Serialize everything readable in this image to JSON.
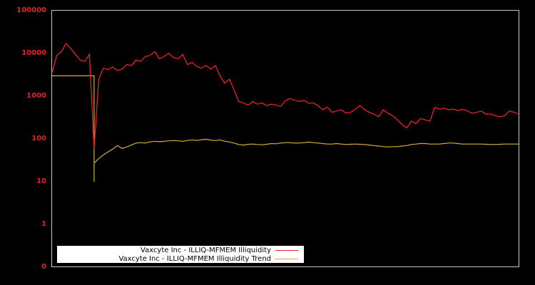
{
  "chart_data": {
    "type": "line",
    "title": "",
    "xlabel": "",
    "ylabel": "",
    "yscale": "log",
    "y_ticks": [
      "100000",
      "10000",
      "1000",
      "100",
      "10",
      "1",
      "0"
    ],
    "ylim": [
      0.1,
      100000
    ],
    "grid": false,
    "legend_position": "lower-left",
    "x": [
      0,
      0.01,
      0.02,
      0.03,
      0.04,
      0.05,
      0.06,
      0.07,
      0.08,
      0.09,
      0.1,
      0.11,
      0.12,
      0.13,
      0.14,
      0.15,
      0.16,
      0.17,
      0.18,
      0.19,
      0.2,
      0.21,
      0.22,
      0.23,
      0.24,
      0.25,
      0.26,
      0.27,
      0.28,
      0.29,
      0.3,
      0.31,
      0.32,
      0.33,
      0.34,
      0.35,
      0.36,
      0.37,
      0.38,
      0.39,
      0.4,
      0.41,
      0.42,
      0.43,
      0.44,
      0.45,
      0.46,
      0.47,
      0.48,
      0.49,
      0.5,
      0.51,
      0.52,
      0.53,
      0.54,
      0.55,
      0.56,
      0.57,
      0.58,
      0.59,
      0.6,
      0.61,
      0.62,
      0.63,
      0.64,
      0.65,
      0.66,
      0.67,
      0.68,
      0.69,
      0.7,
      0.71,
      0.72,
      0.73,
      0.74,
      0.75,
      0.76,
      0.77,
      0.78,
      0.79,
      0.8,
      0.81,
      0.82,
      0.83,
      0.84,
      0.85,
      0.86,
      0.87,
      0.88,
      0.89,
      0.9,
      0.91,
      0.92,
      0.93,
      0.94,
      0.95,
      0.96,
      0.97,
      0.98,
      0.99,
      1.0
    ],
    "series": [
      {
        "name": "Vaxcyte Inc - ILLIQ-MFMEM Illiquidity",
        "color": "#e8202a",
        "values": [
          3500,
          9000,
          11000,
          17000,
          13000,
          9500,
          7000,
          6500,
          9500,
          60,
          2500,
          4500,
          4200,
          4800,
          4000,
          4300,
          5500,
          5200,
          7000,
          6500,
          8500,
          9000,
          11000,
          7500,
          8500,
          10000,
          8000,
          7500,
          9500,
          5500,
          6200,
          5000,
          4500,
          5200,
          4300,
          5200,
          3000,
          2000,
          2500,
          1400,
          750,
          700,
          620,
          750,
          650,
          700,
          600,
          650,
          620,
          580,
          780,
          880,
          800,
          750,
          800,
          680,
          700,
          600,
          480,
          550,
          420,
          450,
          480,
          400,
          420,
          500,
          600,
          480,
          420,
          380,
          330,
          480,
          400,
          350,
          280,
          220,
          180,
          260,
          230,
          300,
          280,
          260,
          550,
          500,
          520,
          480,
          500,
          460,
          490,
          450,
          400,
          420,
          450,
          380,
          380,
          350,
          330,
          350,
          450,
          420,
          380
        ]
      },
      {
        "name": "Vaxcyte Inc - ILLIQ-MFMEM Illiquidity Trend",
        "color": "#d4b030",
        "values": [
          3000,
          3000,
          3000,
          3000,
          3000,
          3000,
          3000,
          3000,
          3000,
          27,
          35,
          42,
          50,
          58,
          70,
          60,
          65,
          72,
          80,
          82,
          80,
          85,
          88,
          86,
          88,
          90,
          92,
          90,
          88,
          92,
          95,
          92,
          96,
          98,
          94,
          92,
          95,
          88,
          85,
          80,
          74,
          72,
          75,
          76,
          74,
          73,
          75,
          78,
          77,
          80,
          82,
          82,
          80,
          80,
          82,
          84,
          82,
          80,
          78,
          76,
          76,
          78,
          76,
          74,
          75,
          76,
          75,
          74,
          72,
          70,
          68,
          66,
          65,
          66,
          66,
          68,
          70,
          74,
          76,
          78,
          78,
          76,
          76,
          76,
          78,
          80,
          80,
          78,
          76,
          76,
          76,
          76,
          76,
          75,
          74,
          74,
          75,
          76,
          76,
          76,
          76
        ]
      }
    ]
  },
  "legend": {
    "items": [
      {
        "label": "Vaxcyte Inc - ILLIQ-MFMEM Illiquidity",
        "color": "#e8202a"
      },
      {
        "label": "Vaxcyte Inc - ILLIQ-MFMEM Illiquidity Trend",
        "color": "#d4b030"
      }
    ]
  }
}
